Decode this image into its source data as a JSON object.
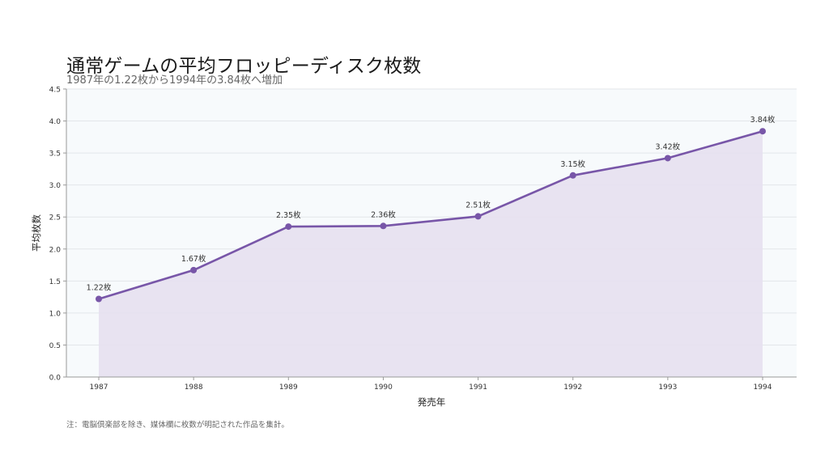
{
  "chart_data": {
    "type": "area",
    "title": "通常ゲームの平均フロッピーディスク枚数",
    "subtitle": "1987年の1.22枚から1994年の3.84枚へ増加",
    "xlabel": "発売年",
    "ylabel": "平均枚数",
    "ylim": [
      0,
      4.5
    ],
    "yticks": [
      "0.0",
      "0.5",
      "1.0",
      "1.5",
      "2.0",
      "2.5",
      "3.0",
      "3.5",
      "4.0",
      "4.5"
    ],
    "categories": [
      "1987",
      "1988",
      "1989",
      "1990",
      "1991",
      "1992",
      "1993",
      "1994"
    ],
    "values": [
      1.22,
      1.67,
      2.35,
      2.36,
      2.51,
      3.15,
      3.42,
      3.84
    ],
    "data_labels": [
      "1.22枚",
      "1.67枚",
      "2.35枚",
      "2.36枚",
      "2.51枚",
      "3.15枚",
      "3.42枚",
      "3.84枚"
    ],
    "grid": true,
    "colors": {
      "line": "#7856a8",
      "fill": "#e6e0f0",
      "plot_bg": "#f7fafc",
      "grid": "#e3e6ea"
    }
  },
  "footnote": "注：電脳倶楽部を除き、媒体欄に枚数が明記された作品を集計。"
}
